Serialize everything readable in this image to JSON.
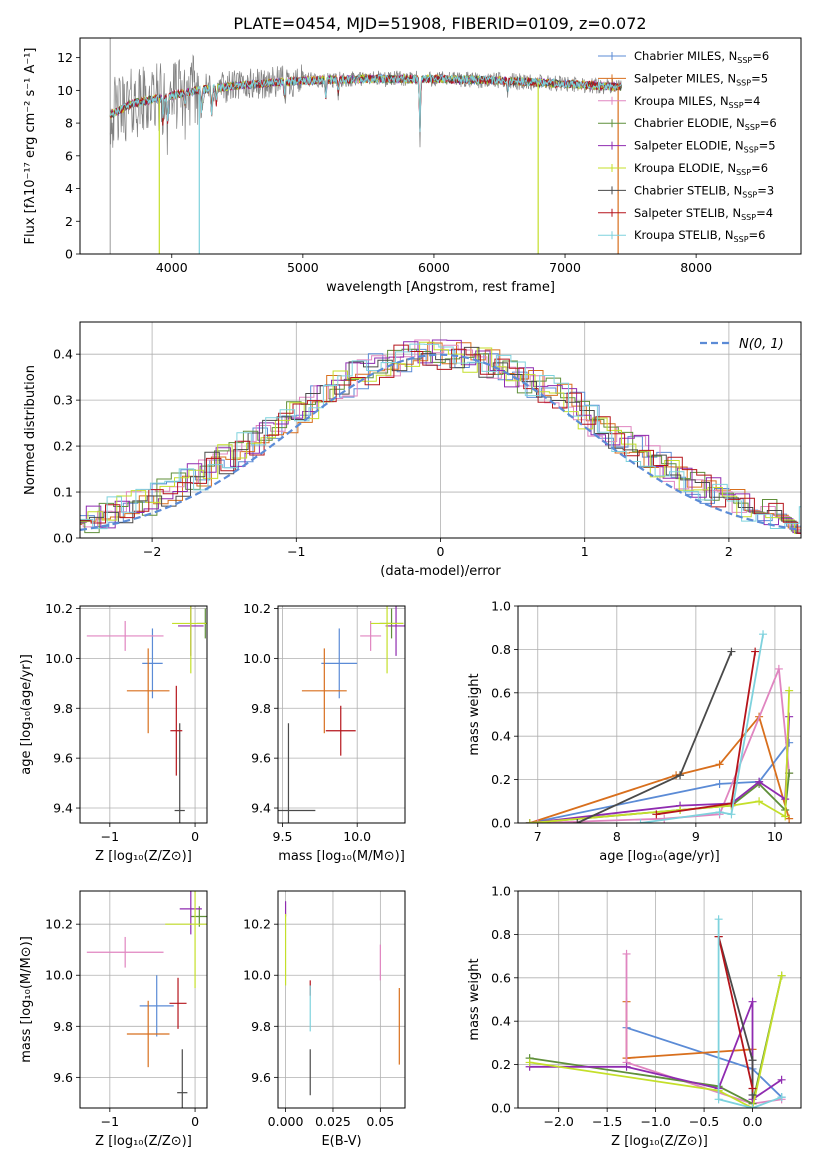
{
  "figure": {
    "title": "PLATE=0454, MJD=51908, FIBERID=0109, z=0.072"
  },
  "colors": {
    "Chabrier MILES": "#5b8bd6",
    "Salpeter MILES": "#d86f1d",
    "Kroupa MILES": "#e085c0",
    "Chabrier ELODIE": "#5f8f3a",
    "Salpeter ELODIE": "#8f2bb0",
    "Kroupa ELODIE": "#c4df2a",
    "Chabrier STELIB": "#4a4a4a",
    "Salpeter STELIB": "#b5141b",
    "Kroupa STELIB": "#7ed2dd",
    "data": "#808080",
    "gaussian": "#5b8bd6"
  },
  "chart_data": [
    {
      "id": "spectrum",
      "type": "line",
      "title": "PLATE=0454, MJD=51908, FIBERID=0109, z=0.072",
      "xlabel": "wavelength [Angstrom, rest frame]",
      "ylabel": "Flux [fλ10⁻¹⁷ erg cm⁻² s⁻¹ A⁻¹]",
      "xlim": [
        3300,
        8800
      ],
      "ylim": [
        0,
        13.2
      ],
      "xticks": [
        4000,
        5000,
        6000,
        7000,
        8000
      ],
      "yticks": [
        0,
        2,
        4,
        6,
        8,
        10,
        12
      ],
      "legend_placement": "top-right",
      "legend": [
        {
          "label": "Chabrier MILES, N",
          "sub": "SSP",
          "tail": "=6",
          "key": "Chabrier MILES"
        },
        {
          "label": "Salpeter MILES, N",
          "sub": "SSP",
          "tail": "=5",
          "key": "Salpeter MILES"
        },
        {
          "label": "Kroupa MILES, N",
          "sub": "SSP",
          "tail": "=4",
          "key": "Kroupa MILES"
        },
        {
          "label": "Chabrier ELODIE, N",
          "sub": "SSP",
          "tail": "=6",
          "key": "Chabrier ELODIE"
        },
        {
          "label": "Salpeter ELODIE, N",
          "sub": "SSP",
          "tail": "=5",
          "key": "Salpeter ELODIE"
        },
        {
          "label": "Kroupa ELODIE, N",
          "sub": "SSP",
          "tail": "=6",
          "key": "Kroupa ELODIE"
        },
        {
          "label": "Chabrier STELIB, N",
          "sub": "SSP",
          "tail": "=3",
          "key": "Chabrier STELIB"
        },
        {
          "label": "Salpeter STELIB, N",
          "sub": "SSP",
          "tail": "=4",
          "key": "Salpeter STELIB"
        },
        {
          "label": "Kroupa STELIB, N",
          "sub": "SSP",
          "tail": "=6",
          "key": "Kroupa STELIB"
        }
      ],
      "data_range": [
        3530,
        7430
      ],
      "continuum_points": [
        [
          3530,
          8.5
        ],
        [
          3700,
          9.2
        ],
        [
          3950,
          9.6
        ],
        [
          4200,
          10.0
        ],
        [
          4500,
          10.3
        ],
        [
          5000,
          10.6
        ],
        [
          5500,
          10.7
        ],
        [
          6000,
          10.7
        ],
        [
          6500,
          10.6
        ],
        [
          7000,
          10.4
        ],
        [
          7430,
          10.2
        ]
      ],
      "absorption_lines": [
        [
          3934,
          7.5
        ],
        [
          3969,
          7.8
        ],
        [
          4101,
          9.0
        ],
        [
          4227,
          8.5
        ],
        [
          4304,
          8.0
        ],
        [
          4340,
          9.0
        ],
        [
          4861,
          9.5
        ],
        [
          5175,
          9.4
        ],
        [
          5270,
          9.7
        ],
        [
          5893,
          6.8
        ],
        [
          6563,
          9.9
        ]
      ],
      "model_dropouts": [
        {
          "series": "Kroupa ELODIE",
          "x": 3905
        },
        {
          "series": "Kroupa STELIB",
          "x": 4210
        },
        {
          "series": "Kroupa ELODIE",
          "x": 6795
        },
        {
          "series": "Salpeter MILES",
          "x": 7405
        }
      ]
    },
    {
      "id": "residuals",
      "type": "histogram",
      "xlabel": "(data-model)/error",
      "ylabel": "Normed distribution",
      "xlim": [
        -2.5,
        2.5
      ],
      "ylim": [
        0,
        0.47
      ],
      "xticks": [
        -2,
        -1,
        0,
        1,
        2
      ],
      "yticks": [
        0.0,
        0.1,
        0.2,
        0.3,
        0.4
      ],
      "bin_width": 0.1,
      "legend_placement": "top-right",
      "gaussian": {
        "label": "N(0, 1)",
        "mu": 0,
        "sigma": 1
      }
    },
    {
      "id": "age_vs_Z",
      "type": "scatter",
      "xlabel": "Z [log₁₀(Z/Z⊙)]",
      "ylabel": "age  [log₁₀(age/yr)]",
      "xlim": [
        -1.35,
        0.14
      ],
      "ylim": [
        9.34,
        10.21
      ],
      "xticks": [
        -1,
        0
      ],
      "yticks": [
        9.4,
        9.6,
        9.8,
        10.0,
        10.2
      ],
      "points": [
        {
          "series": "Chabrier MILES",
          "x": -0.5,
          "y": 9.98,
          "xerr": 0.12,
          "yerr": 0.14
        },
        {
          "series": "Salpeter MILES",
          "x": -0.55,
          "y": 9.87,
          "xerr": 0.25,
          "yerr": 0.17
        },
        {
          "series": "Kroupa MILES",
          "x": -0.82,
          "y": 10.09,
          "xerr": 0.45,
          "yerr": 0.06
        },
        {
          "series": "Chabrier ELODIE",
          "x": 0.12,
          "y": 10.14,
          "xerr": 0.1,
          "yerr": 0.06
        },
        {
          "series": "Salpeter ELODIE",
          "x": -0.05,
          "y": 10.13,
          "xerr": 0.15,
          "yerr": 0.12
        },
        {
          "series": "Kroupa ELODIE",
          "x": -0.05,
          "y": 10.14,
          "xerr": 0.22,
          "yerr": 0.2
        },
        {
          "series": "Chabrier STELIB",
          "x": -0.18,
          "y": 9.39,
          "xerr": 0.06,
          "yerr": 0.35
        },
        {
          "series": "Salpeter STELIB",
          "x": -0.22,
          "y": 9.71,
          "xerr": 0.07,
          "yerr": 0.18
        },
        {
          "series": "Kroupa STELIB",
          "x": -0.38,
          "y": 9.8,
          "xerr": 0.0,
          "yerr": 0.0
        }
      ]
    },
    {
      "id": "age_vs_mass",
      "type": "scatter",
      "xlabel": "mass [log₁₀(M/M⊙)]",
      "ylabel": "",
      "xlim": [
        9.47,
        10.32
      ],
      "ylim": [
        9.34,
        10.21
      ],
      "xticks": [
        9.5,
        10.0
      ],
      "yticks": [
        9.4,
        9.6,
        9.8,
        10.0,
        10.2
      ],
      "points": [
        {
          "series": "Chabrier MILES",
          "x": 9.88,
          "y": 9.98,
          "xerr": 0.12,
          "yerr": 0.14
        },
        {
          "series": "Salpeter MILES",
          "x": 9.78,
          "y": 9.87,
          "xerr": 0.15,
          "yerr": 0.17
        },
        {
          "series": "Kroupa MILES",
          "x": 10.09,
          "y": 10.09,
          "xerr": 0.07,
          "yerr": 0.06
        },
        {
          "series": "Chabrier ELODIE",
          "x": 10.23,
          "y": 10.14,
          "xerr": 0.08,
          "yerr": 0.06
        },
        {
          "series": "Salpeter ELODIE",
          "x": 10.26,
          "y": 10.13,
          "xerr": 0.07,
          "yerr": 0.12
        },
        {
          "series": "Kroupa ELODIE",
          "x": 10.2,
          "y": 10.14,
          "xerr": 0.11,
          "yerr": 0.2
        },
        {
          "series": "Chabrier STELIB",
          "x": 9.54,
          "y": 9.39,
          "xerr": 0.18,
          "yerr": 0.35
        },
        {
          "series": "Salpeter STELIB",
          "x": 9.89,
          "y": 9.71,
          "xerr": 0.1,
          "yerr": 0.1
        },
        {
          "series": "Kroupa STELIB",
          "x": 9.88,
          "y": 9.8,
          "xerr": 0.0,
          "yerr": 0.0
        }
      ]
    },
    {
      "id": "mass_weight_vs_age",
      "type": "line",
      "xlabel": "age  [log₁₀(age/yr)]",
      "ylabel": "mass weight",
      "xlim": [
        6.75,
        10.33
      ],
      "ylim": [
        0,
        1.0
      ],
      "xticks": [
        7,
        8,
        9,
        10
      ],
      "yticks": [
        0.0,
        0.2,
        0.4,
        0.6,
        0.8,
        1.0
      ],
      "series": [
        {
          "name": "Chabrier MILES",
          "x": [
            6.9,
            9.3,
            9.8,
            10.18
          ],
          "y": [
            0.0,
            0.18,
            0.19,
            0.37
          ]
        },
        {
          "name": "Salpeter MILES",
          "x": [
            6.9,
            8.75,
            9.3,
            9.8,
            10.18
          ],
          "y": [
            0.0,
            0.22,
            0.27,
            0.49,
            0.02
          ]
        },
        {
          "name": "Kroupa MILES",
          "x": [
            7.0,
            8.6,
            9.3,
            10.05,
            10.18
          ],
          "y": [
            0.0,
            0.02,
            0.04,
            0.71,
            0.23
          ]
        },
        {
          "name": "Chabrier ELODIE",
          "x": [
            6.9,
            8.8,
            9.45,
            9.8,
            10.13,
            10.18
          ],
          "y": [
            0.0,
            0.06,
            0.08,
            0.18,
            0.06,
            0.23
          ]
        },
        {
          "name": "Salpeter ELODIE",
          "x": [
            6.9,
            8.8,
            9.45,
            9.8,
            10.13,
            10.18
          ],
          "y": [
            0.0,
            0.08,
            0.09,
            0.19,
            0.11,
            0.49
          ]
        },
        {
          "name": "Kroupa ELODIE",
          "x": [
            6.9,
            8.8,
            9.45,
            9.8,
            10.13,
            10.18
          ],
          "y": [
            0.0,
            0.06,
            0.08,
            0.1,
            0.03,
            0.61
          ]
        },
        {
          "name": "Chabrier STELIB",
          "x": [
            7.5,
            8.8,
            9.45
          ],
          "y": [
            0.0,
            0.22,
            0.79
          ]
        },
        {
          "name": "Salpeter STELIB",
          "x": [
            8.5,
            9.45,
            9.75
          ],
          "y": [
            0.04,
            0.09,
            0.79
          ]
        },
        {
          "name": "Kroupa STELIB",
          "x": [
            8.3,
            9.3,
            9.45,
            9.85
          ],
          "y": [
            0.0,
            0.05,
            0.04,
            0.87
          ]
        }
      ]
    },
    {
      "id": "mass_vs_Z",
      "type": "scatter",
      "xlabel": "Z [log₁₀(Z/Z⊙)]",
      "ylabel": "mass [log₁₀(M/M⊙)]",
      "xlim": [
        -1.35,
        0.14
      ],
      "ylim": [
        9.48,
        10.33
      ],
      "xticks": [
        -1,
        0
      ],
      "yticks": [
        9.6,
        9.8,
        10.0,
        10.2
      ],
      "points": [
        {
          "series": "Chabrier MILES",
          "x": -0.45,
          "y": 9.88,
          "xerr": 0.2,
          "yerr": 0.12
        },
        {
          "series": "Salpeter MILES",
          "x": -0.55,
          "y": 9.77,
          "xerr": 0.25,
          "yerr": 0.13
        },
        {
          "series": "Kroupa MILES",
          "x": -0.82,
          "y": 10.09,
          "xerr": 0.45,
          "yerr": 0.06
        },
        {
          "series": "Chabrier ELODIE",
          "x": 0.05,
          "y": 10.23,
          "xerr": 0.1,
          "yerr": 0.04
        },
        {
          "series": "Salpeter ELODIE",
          "x": -0.05,
          "y": 10.26,
          "xerr": 0.13,
          "yerr": 0.1
        },
        {
          "series": "Kroupa ELODIE",
          "x": 0.0,
          "y": 10.2,
          "xerr": 0.35,
          "yerr": 0.25
        },
        {
          "series": "Chabrier STELIB",
          "x": -0.15,
          "y": 9.54,
          "xerr": 0.06,
          "yerr": 0.17
        },
        {
          "series": "Salpeter STELIB",
          "x": -0.2,
          "y": 9.89,
          "xerr": 0.1,
          "yerr": 0.1
        },
        {
          "series": "Kroupa STELIB",
          "x": -0.35,
          "y": 9.88,
          "xerr": 0.0,
          "yerr": 0.0
        }
      ]
    },
    {
      "id": "mass_vs_EBV",
      "type": "scatter",
      "xlabel": "E(B-V)",
      "ylabel": "",
      "xlim": [
        -0.004,
        0.063
      ],
      "ylim": [
        9.48,
        10.33
      ],
      "xticks": [
        0.0,
        0.025,
        0.05
      ],
      "yticks": [
        9.6,
        9.8,
        10.0,
        10.2
      ],
      "points": [
        {
          "series": "Salpeter MILES",
          "x": 0.06,
          "y": 9.8,
          "xerr": 0.0,
          "yerr": 0.15
        },
        {
          "series": "Kroupa MILES",
          "x": 0.05,
          "y": 10.05,
          "xerr": 0.0,
          "yerr": 0.07
        },
        {
          "series": "Salpeter ELODIE",
          "x": 0.0,
          "y": 10.26,
          "xerr": 0.0,
          "yerr": 0.03
        },
        {
          "series": "Kroupa ELODIE",
          "x": 0.0,
          "y": 10.1,
          "xerr": 0.0,
          "yerr": 0.14
        },
        {
          "series": "Chabrier STELIB",
          "x": 0.013,
          "y": 9.62,
          "xerr": 0.0,
          "yerr": 0.09
        },
        {
          "series": "Salpeter STELIB",
          "x": 0.013,
          "y": 9.95,
          "xerr": 0.0,
          "yerr": 0.03
        },
        {
          "series": "Kroupa STELIB",
          "x": 0.013,
          "y": 9.87,
          "xerr": 0.0,
          "yerr": 0.09
        }
      ]
    },
    {
      "id": "mass_weight_vs_Z",
      "type": "line",
      "xlabel": "Z [log₁₀(Z/Z⊙)]",
      "ylabel": "mass weight",
      "xlim": [
        -2.42,
        0.5
      ],
      "ylim": [
        0,
        1.0
      ],
      "xticks": [
        -2.0,
        -1.5,
        -1.0,
        -0.5,
        0.0
      ],
      "yticks": [
        0.0,
        0.2,
        0.4,
        0.6,
        0.8,
        1.0
      ],
      "series": [
        {
          "name": "Chabrier MILES",
          "x": [
            -1.3,
            0.0,
            0.3
          ],
          "y": [
            0.37,
            0.18,
            0.05
          ]
        },
        {
          "name": "Salpeter MILES",
          "x": [
            -1.3,
            -1.3,
            0.0,
            0.0
          ],
          "y": [
            0.49,
            0.23,
            0.27,
            0.02
          ]
        },
        {
          "name": "Kroupa MILES",
          "x": [
            -1.3,
            -1.3,
            0.0,
            0.3
          ],
          "y": [
            0.71,
            0.21,
            0.02,
            0.04
          ]
        },
        {
          "name": "Chabrier ELODIE",
          "x": [
            -2.3,
            -0.35,
            0.0,
            0.3
          ],
          "y": [
            0.23,
            0.1,
            0.02,
            0.61
          ]
        },
        {
          "name": "Salpeter ELODIE",
          "x": [
            -2.3,
            -1.3,
            -0.35,
            0.0,
            0.0,
            0.3
          ],
          "y": [
            0.19,
            0.19,
            0.09,
            0.49,
            0.04,
            0.13
          ]
        },
        {
          "name": "Kroupa ELODIE",
          "x": [
            -2.3,
            -0.35,
            0.0,
            0.3
          ],
          "y": [
            0.21,
            0.08,
            0.0,
            0.61
          ]
        },
        {
          "name": "Chabrier STELIB",
          "x": [
            -0.35,
            0.0,
            0.0
          ],
          "y": [
            0.79,
            0.22,
            0.06
          ]
        },
        {
          "name": "Salpeter STELIB",
          "x": [
            -0.35,
            -0.35,
            0.0
          ],
          "y": [
            0.79,
            0.79,
            0.09
          ]
        },
        {
          "name": "Kroupa STELIB",
          "x": [
            -0.35,
            -0.35,
            0.0,
            0.3
          ],
          "y": [
            0.87,
            0.04,
            0.0,
            0.05
          ]
        }
      ]
    }
  ]
}
